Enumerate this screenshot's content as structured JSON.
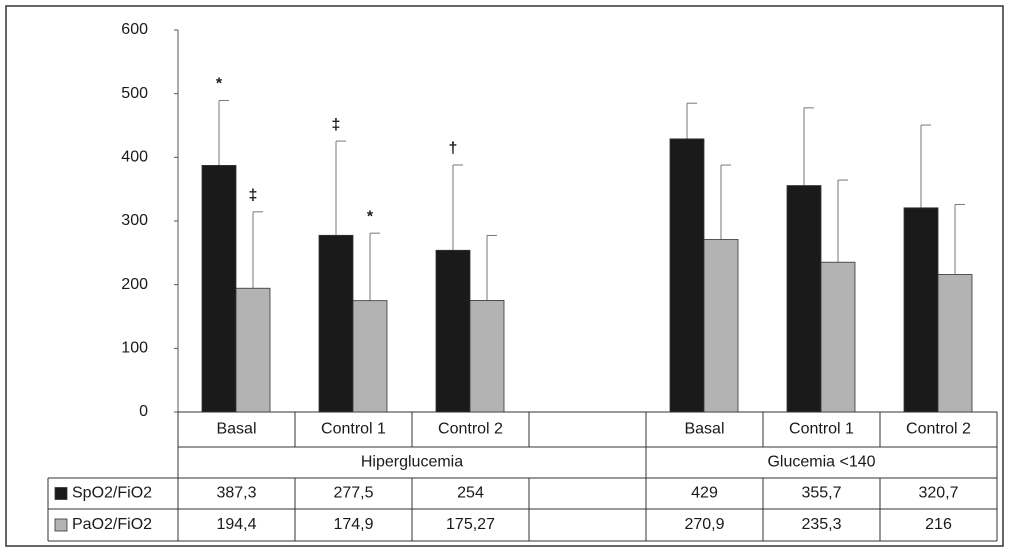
{
  "chart_data": {
    "type": "bar",
    "categories": [
      "Basal",
      "Control 1",
      "Control 2",
      null,
      "Basal",
      "Control 1",
      "Control 2"
    ],
    "group_labels": [
      "Hiperglucemia",
      "Glucemia <140"
    ],
    "series": [
      {
        "name": "SpO2/FiO2",
        "color": "#1a1a1a",
        "values": [
          387.3,
          277.5,
          254,
          null,
          429,
          355.7,
          320.7
        ],
        "value_labels": [
          "387,3",
          "277,5",
          "254",
          null,
          "429",
          "355,7",
          "320,7"
        ],
        "errors": [
          102,
          148,
          134,
          null,
          56,
          122,
          130
        ],
        "annotations": [
          "*",
          "‡",
          "†",
          null,
          null,
          null,
          null
        ]
      },
      {
        "name": "PaO2/FiO2",
        "color": "#b3b3b3",
        "values": [
          194.4,
          174.9,
          175.27,
          null,
          270.9,
          235.3,
          216
        ],
        "value_labels": [
          "194,4",
          "174,9",
          "175,27",
          null,
          "270,9",
          "235,3",
          "216"
        ],
        "errors": [
          120,
          106,
          102,
          null,
          117,
          129,
          110
        ],
        "annotations": [
          "‡",
          "*",
          null,
          null,
          null,
          null,
          null
        ]
      }
    ],
    "ylim": [
      0,
      600
    ],
    "yticks": [
      0,
      100,
      200,
      300,
      400,
      500,
      600
    ],
    "grid": false
  }
}
